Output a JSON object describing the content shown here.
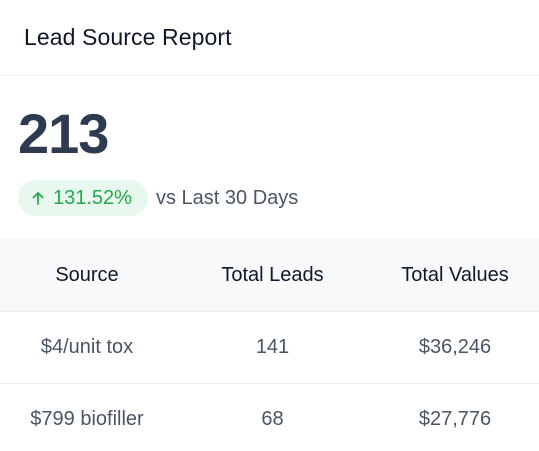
{
  "header": {
    "title": "Lead Source Report"
  },
  "metric": {
    "value": "213",
    "delta": "131.52%",
    "delta_direction": "up",
    "delta_color": "#22a94d",
    "comparison": "vs Last 30 Days"
  },
  "table": {
    "columns": [
      "Source",
      "Total Leads",
      "Total Values"
    ],
    "rows": [
      {
        "source": "$4/unit tox",
        "leads": "141",
        "value": "$36,246"
      },
      {
        "source": "$799 biofiller",
        "leads": "68",
        "value": "$27,776"
      }
    ]
  }
}
